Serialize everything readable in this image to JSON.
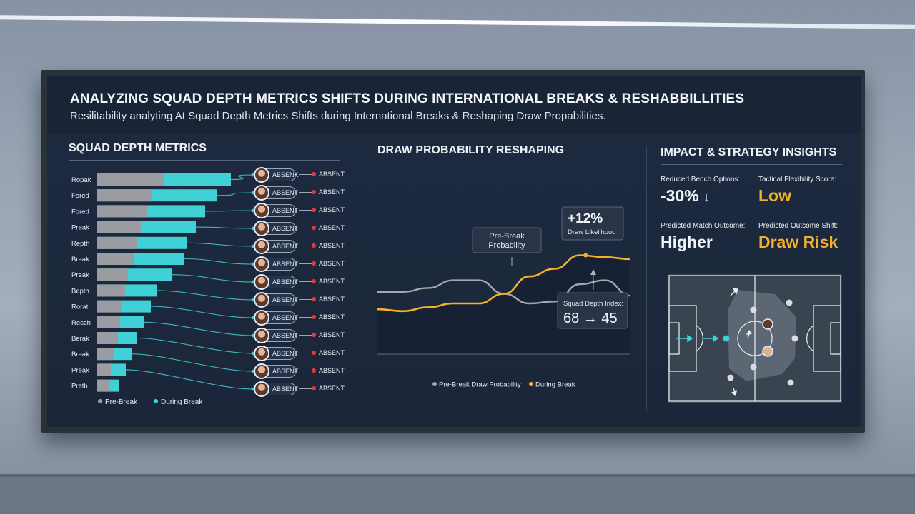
{
  "header": {
    "title": "ANALYZING SQUAD DEPTH METRICS SHIFTS DURING INTERNATIONAL BREAKS & RESHABBILLITIES",
    "subtitle": "Resilitability analyting At Squad Depth Metrics Shifts during International Breaks & Reshaping Draw Propabilities."
  },
  "panels": {
    "squad_depth": {
      "title": "SQUAD DEPTH METRICS"
    },
    "draw_prob": {
      "title": "DRAW PROBABILITY RESHAPING"
    },
    "impact": {
      "title": "IMPACT & STRATEGY INSIGHTS"
    }
  },
  "colors": {
    "pre_break": "#9a9ca1",
    "during_break": "#3fd1d6",
    "accent": "#f4b12a",
    "absent_dot": "#e23a3a"
  },
  "chart_data": [
    {
      "type": "bar",
      "title": "SQUAD DEPTH METRICS",
      "categories": [
        "Ropak",
        "Fored",
        "Fored",
        "Preak",
        "Repth",
        "Break",
        "Preak",
        "Bepth",
        "Rorat",
        "Resch",
        "Berak",
        "Break",
        "Preak",
        "Preth"
      ],
      "series": [
        {
          "name": "Pre-Break",
          "values": [
            95,
            78,
            70,
            62,
            56,
            52,
            44,
            40,
            36,
            33,
            30,
            25,
            20,
            17
          ]
        },
        {
          "name": "During Break",
          "values": [
            188,
            168,
            152,
            139,
            126,
            122,
            106,
            84,
            76,
            66,
            56,
            49,
            41,
            31
          ]
        }
      ],
      "legend": [
        "Pre-Break",
        "During Break"
      ],
      "legend_position": "bottom"
    },
    {
      "type": "line",
      "title": "DRAW PROBABILITY RESHAPING",
      "x": [
        0,
        1,
        2,
        3,
        4,
        5,
        6,
        7,
        8,
        9,
        10
      ],
      "series": [
        {
          "name": "Pre-Break Draw Probability",
          "values": [
            36,
            36,
            38,
            42,
            42,
            35,
            30,
            31,
            40,
            42,
            34
          ]
        },
        {
          "name": "During Break",
          "values": [
            27,
            26,
            28,
            30,
            30,
            35,
            44,
            48,
            55,
            54,
            53
          ]
        }
      ],
      "annotations": {
        "pre_break_box": "Pre-Break Probability",
        "increase_value": "+12%",
        "increase_label": "Draw Likelihood",
        "index_label": "Squad Depth Index:",
        "index_value": "68 → 45"
      },
      "legend_position": "bottom"
    }
  ],
  "absent_list": {
    "tag_label": "ABSENT",
    "first_tag_label": "ABSENK",
    "outside_label": "ABSENT",
    "count": 13
  },
  "legend": {
    "pre_break": "Pre-Break",
    "during_break": "During Break"
  },
  "impact": {
    "metrics": [
      {
        "label": "Reduced Bench Options:",
        "value": "-30%",
        "arrow": "↓"
      },
      {
        "label": "Tactical Flexibility Score:",
        "value": "Low"
      },
      {
        "label": "Predicted Match Outcome:",
        "value": "Higher"
      },
      {
        "label": "Predicted Outcome Shift:",
        "value": "Draw Risk"
      }
    ]
  }
}
